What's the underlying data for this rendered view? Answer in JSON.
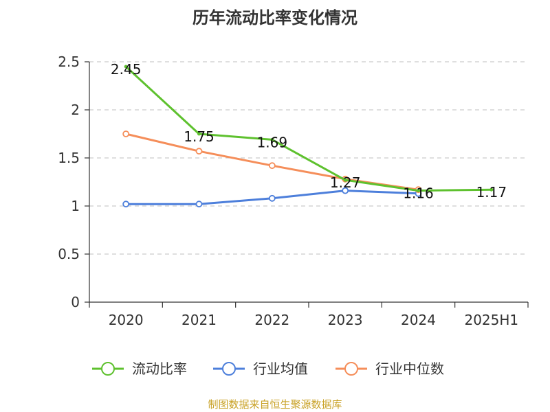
{
  "chart_data": {
    "type": "line",
    "title": "历年流动比率变化情况",
    "categories": [
      "2020",
      "2021",
      "2022",
      "2023",
      "2024",
      "2025H1"
    ],
    "ylim": [
      0,
      2.5
    ],
    "yticks": [
      "0",
      "0.5",
      "1",
      "1.5",
      "2",
      "2.5"
    ],
    "grid": true,
    "legend_position": "bottom",
    "series": [
      {
        "name": "流动比率",
        "color": "#5ec12e",
        "values": [
          2.45,
          1.75,
          1.69,
          1.27,
          1.16,
          1.17
        ],
        "labels": [
          "2.45",
          "1.75",
          "1.69",
          "1.27",
          "1.16",
          "1.17"
        ]
      },
      {
        "name": "行业均值",
        "color": "#4d7fdb",
        "values": [
          1.02,
          1.02,
          1.08,
          1.16,
          1.13,
          null
        ]
      },
      {
        "name": "行业中位数",
        "color": "#f58e5a",
        "values": [
          1.75,
          1.57,
          1.42,
          1.28,
          1.17,
          null
        ]
      }
    ]
  },
  "source": "制图数据来自恒生聚源数据库"
}
